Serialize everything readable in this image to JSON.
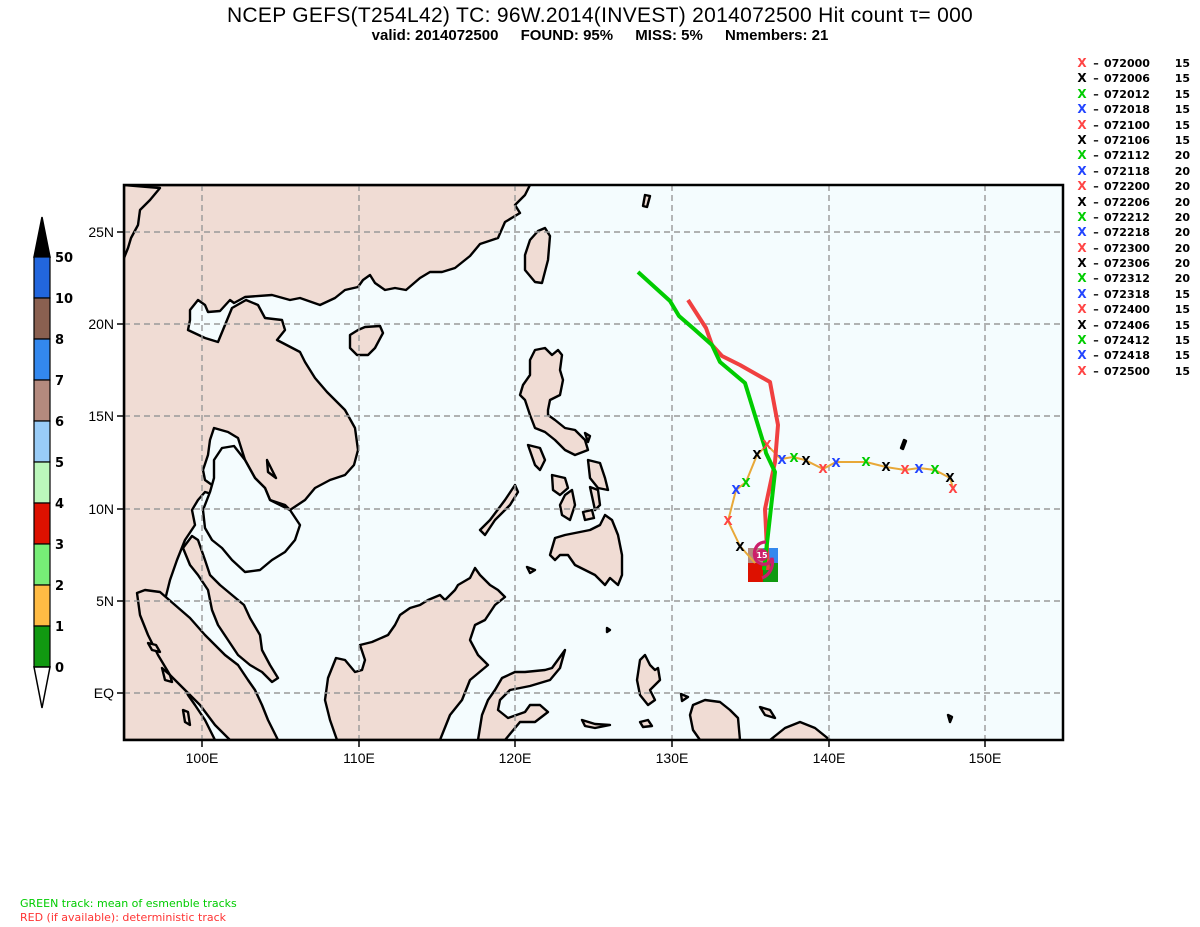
{
  "header": {
    "title": "NCEP GEFS(T254L42) TC: 96W.2014(INVEST) 2014072500 Hit count  τ= 000",
    "valid": "valid: 2014072500",
    "found": "FOUND: 95%",
    "miss": "MISS:  5%",
    "nmembers": "Nmembers: 21"
  },
  "legend": {
    "items": [
      {
        "mark": "X",
        "color": "#ff4444",
        "time": "072000",
        "count": "15"
      },
      {
        "mark": "X",
        "color": "#000000",
        "time": "072006",
        "count": "15"
      },
      {
        "mark": "X",
        "color": "#00cc00",
        "time": "072012",
        "count": "15"
      },
      {
        "mark": "X",
        "color": "#2244ff",
        "time": "072018",
        "count": "15"
      },
      {
        "mark": "X",
        "color": "#ff4444",
        "time": "072100",
        "count": "15"
      },
      {
        "mark": "X",
        "color": "#000000",
        "time": "072106",
        "count": "15"
      },
      {
        "mark": "X",
        "color": "#00cc00",
        "time": "072112",
        "count": "20"
      },
      {
        "mark": "X",
        "color": "#2244ff",
        "time": "072118",
        "count": "20"
      },
      {
        "mark": "X",
        "color": "#ff4444",
        "time": "072200",
        "count": "20"
      },
      {
        "mark": "X",
        "color": "#000000",
        "time": "072206",
        "count": "20"
      },
      {
        "mark": "X",
        "color": "#00cc00",
        "time": "072212",
        "count": "20"
      },
      {
        "mark": "X",
        "color": "#2244ff",
        "time": "072218",
        "count": "20"
      },
      {
        "mark": "X",
        "color": "#ff4444",
        "time": "072300",
        "count": "20"
      },
      {
        "mark": "X",
        "color": "#000000",
        "time": "072306",
        "count": "20"
      },
      {
        "mark": "X",
        "color": "#00cc00",
        "time": "072312",
        "count": "20"
      },
      {
        "mark": "X",
        "color": "#2244ff",
        "time": "072318",
        "count": "15"
      },
      {
        "mark": "X",
        "color": "#ff4444",
        "time": "072400",
        "count": "15"
      },
      {
        "mark": "X",
        "color": "#000000",
        "time": "072406",
        "count": "15"
      },
      {
        "mark": "X",
        "color": "#00cc00",
        "time": "072412",
        "count": "15"
      },
      {
        "mark": "X",
        "color": "#2244ff",
        "time": "072418",
        "count": "15"
      },
      {
        "mark": "X",
        "color": "#ff4444",
        "time": "072500",
        "count": "15"
      }
    ]
  },
  "colorbar": {
    "labels": [
      "0",
      "1",
      "2",
      "3",
      "4",
      "5",
      "6",
      "7",
      "8",
      "10",
      "50"
    ],
    "colors": [
      "#119911",
      "#ffbb44",
      "#77ee77",
      "#dd1100",
      "#bbf7bb",
      "#99ccf7",
      "#b48a7e",
      "#3388ee",
      "#8a6050",
      "#2266dd"
    ]
  },
  "map": {
    "lat_labels": [
      "25N",
      "20N",
      "15N",
      "10N",
      "5N",
      "EQ"
    ],
    "lon_labels": [
      "100E",
      "110E",
      "120E",
      "130E",
      "140E",
      "150E"
    ],
    "land_color": "#f0dcd4",
    "ocean_color": "#f4fcfe",
    "storm_label": "15"
  },
  "footnotes": {
    "green": "GREEN track: mean of esmenble tracks",
    "red": "RED (if available): deterministic track"
  },
  "chart_data": {
    "type": "map",
    "title": "NCEP GEFS(T254L42) TC: 96W.2014(INVEST) 2014072500 Hit count τ= 000",
    "subtitle": "valid: 2014072500 FOUND: 95% MISS: 5% Nmembers: 21",
    "lon_range": [
      95,
      155
    ],
    "lat_range": [
      -2.5,
      27.5
    ],
    "ensemble_mean_track": [
      [
        136.0,
        7.5
      ],
      [
        136.3,
        10.0
      ],
      [
        135.9,
        13.0
      ],
      [
        135.4,
        14.7
      ],
      [
        133.8,
        17.1
      ],
      [
        132.5,
        18.0
      ],
      [
        131.5,
        19.6
      ],
      [
        130.4,
        20.4
      ],
      [
        129.3,
        21.5
      ],
      [
        127.6,
        22.8
      ]
    ],
    "deterministic_track": [
      [
        135.6,
        7.5
      ],
      [
        135.4,
        10.0
      ],
      [
        136.0,
        12.5
      ],
      [
        136.5,
        14.5
      ],
      [
        136.1,
        16.9
      ],
      [
        134.0,
        17.8
      ],
      [
        133.0,
        18.3
      ],
      [
        132.4,
        19.4
      ],
      [
        132.1,
        20.3
      ],
      [
        131.0,
        21.3
      ]
    ],
    "observed_track_0720_to_0725": [
      [
        148.0,
        11.2
      ],
      [
        147.6,
        11.7
      ],
      [
        146.9,
        12.1
      ],
      [
        145.8,
        12.2
      ],
      [
        144.9,
        12.1
      ],
      [
        143.7,
        12.3
      ],
      [
        142.3,
        12.6
      ],
      [
        140.3,
        12.5
      ],
      [
        139.7,
        12.3
      ],
      [
        138.6,
        12.6
      ],
      [
        137.8,
        12.7
      ],
      [
        136.8,
        12.6
      ],
      [
        135.8,
        13.4
      ],
      [
        135.2,
        12.9
      ],
      [
        134.5,
        11.5
      ],
      [
        134.0,
        11.1
      ],
      [
        133.5,
        9.3
      ],
      [
        134.4,
        8.0
      ],
      [
        135.3,
        7.1
      ]
    ],
    "hit_count_cells": [
      {
        "lon": 135.2,
        "lat": 7.0,
        "color": "#b48a7e"
      },
      {
        "lon": 136.0,
        "lat": 7.0,
        "color": "#3388ee"
      },
      {
        "lon": 135.2,
        "lat": 6.3,
        "color": "#dd1100"
      },
      {
        "lon": 136.0,
        "lat": 6.3,
        "color": "#119911"
      }
    ],
    "storm_symbol_label": "15",
    "legend_position": "right"
  }
}
